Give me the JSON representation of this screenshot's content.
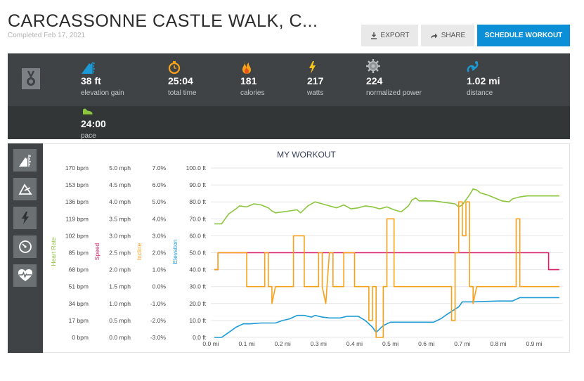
{
  "header": {
    "title": "CARCASSONNE CASTLE WALK, C...",
    "subtitle": "Completed Feb 17, 2021",
    "export_label": "EXPORT",
    "share_label": "SHARE",
    "schedule_label": "SCHEDULE WORKOUT"
  },
  "stats": [
    {
      "icon": "elevation-icon",
      "value": "38 ft",
      "label": "elevation gain"
    },
    {
      "icon": "stopwatch-icon",
      "value": "25:04",
      "label": "total time"
    },
    {
      "icon": "flame-icon",
      "value": "181",
      "label": "calories"
    },
    {
      "icon": "lightning-icon",
      "value": "217",
      "label": "watts"
    },
    {
      "icon": "gear-icon",
      "value": "224",
      "label": "normalized power"
    },
    {
      "icon": "distance-icon",
      "value": "1.02 mi",
      "label": "distance"
    },
    {
      "icon": "shoe-icon",
      "value": "24:00",
      "label": "pace"
    }
  ],
  "sidebar_icons": [
    "elevation-icon",
    "incline-icon",
    "power-icon",
    "speedometer-icon",
    "heart-rate-icon"
  ],
  "colors": {
    "heart_rate": "#8cc63f",
    "speed": "#d6216b",
    "incline": "#f7a11a",
    "elevation": "#1b9ad6",
    "accent": "#0b8fd6"
  },
  "chart_data": {
    "type": "line",
    "title": "MY WORKOUT",
    "x_ticks": [
      "0.0 mi",
      "0.1 mi",
      "0.2 mi",
      "0.3 mi",
      "0.4 mi",
      "0.5 mi",
      "0.6 mi",
      "0.7 mi",
      "0.8 mi",
      "0.9 mi"
    ],
    "xlim": [
      0,
      0.98
    ],
    "axes": [
      {
        "label": "Heart Rate",
        "ticks": [
          "170 bpm",
          "153 bpm",
          "136 bpm",
          "119 bpm",
          "102 bpm",
          "85 bpm",
          "68 bpm",
          "51 bpm",
          "34 bpm",
          "17 bpm",
          "0 bpm"
        ],
        "ylim": [
          0,
          170
        ]
      },
      {
        "label": "Speed",
        "ticks": [
          "5.0 mph",
          "4.5 mph",
          "4.0 mph",
          "3.5 mph",
          "3.0 mph",
          "2.5 mph",
          "2.0 mph",
          "1.5 mph",
          "1.0 mph",
          "0.5 mph",
          "0.0 mph"
        ],
        "ylim": [
          0,
          5
        ]
      },
      {
        "label": "Incline",
        "ticks": [
          "7.0%",
          "6.0%",
          "5.0%",
          "4.0%",
          "3.0%",
          "2.0%",
          "1.0%",
          "0.0%",
          "-1.0%",
          "-2.0%",
          "-3.0%"
        ],
        "ylim": [
          -3,
          7
        ]
      },
      {
        "label": "Elevation",
        "ticks": [
          "100.0 ft",
          "90.0 ft",
          "80.0 ft",
          "70.0 ft",
          "60.0 ft",
          "50.0 ft",
          "40.0 ft",
          "30.0 ft",
          "20.0 ft",
          "10.0 ft",
          "0.0 ft"
        ],
        "ylim": [
          0,
          100
        ]
      }
    ],
    "series": [
      {
        "name": "Heart Rate",
        "color": "#8cc63f",
        "points": [
          [
            0.01,
            114
          ],
          [
            0.03,
            114
          ],
          [
            0.04,
            119
          ],
          [
            0.05,
            124
          ],
          [
            0.07,
            129
          ],
          [
            0.08,
            132
          ],
          [
            0.1,
            131
          ],
          [
            0.12,
            134
          ],
          [
            0.14,
            133
          ],
          [
            0.16,
            130
          ],
          [
            0.17,
            127
          ],
          [
            0.18,
            125
          ],
          [
            0.2,
            126
          ],
          [
            0.22,
            127
          ],
          [
            0.24,
            128
          ],
          [
            0.25,
            125
          ],
          [
            0.27,
            132
          ],
          [
            0.29,
            136
          ],
          [
            0.31,
            134
          ],
          [
            0.33,
            132
          ],
          [
            0.35,
            130
          ],
          [
            0.37,
            133
          ],
          [
            0.39,
            129
          ],
          [
            0.41,
            130
          ],
          [
            0.43,
            132
          ],
          [
            0.45,
            131
          ],
          [
            0.47,
            129
          ],
          [
            0.49,
            131
          ],
          [
            0.51,
            128
          ],
          [
            0.53,
            126
          ],
          [
            0.55,
            132
          ],
          [
            0.56,
            138
          ],
          [
            0.57,
            140
          ],
          [
            0.58,
            137
          ],
          [
            0.6,
            137
          ],
          [
            0.62,
            137
          ],
          [
            0.64,
            136
          ],
          [
            0.66,
            135
          ],
          [
            0.68,
            134
          ],
          [
            0.69,
            131
          ],
          [
            0.7,
            133
          ],
          [
            0.71,
            138
          ],
          [
            0.72,
            143
          ],
          [
            0.73,
            149
          ],
          [
            0.74,
            148
          ],
          [
            0.75,
            145
          ],
          [
            0.77,
            143
          ],
          [
            0.79,
            140
          ],
          [
            0.81,
            137
          ],
          [
            0.83,
            136
          ],
          [
            0.84,
            139
          ],
          [
            0.86,
            141
          ],
          [
            0.88,
            142
          ],
          [
            0.9,
            142
          ],
          [
            0.97,
            142
          ]
        ]
      },
      {
        "name": "Speed",
        "color": "#d6216b",
        "points": [
          [
            0.01,
            2.0
          ],
          [
            0.02,
            2.0
          ],
          [
            0.02,
            2.5
          ],
          [
            0.94,
            2.5
          ],
          [
            0.94,
            2.0
          ],
          [
            0.97,
            2.0
          ]
        ]
      },
      {
        "name": "Incline",
        "color": "#f7a11a",
        "points": [
          [
            0.01,
            1.0
          ],
          [
            0.02,
            1.0
          ],
          [
            0.02,
            2.0
          ],
          [
            0.1,
            2.0
          ],
          [
            0.1,
            0.0
          ],
          [
            0.15,
            0.0
          ],
          [
            0.15,
            2.0
          ],
          [
            0.16,
            2.0
          ],
          [
            0.16,
            0.0
          ],
          [
            0.17,
            0.0
          ],
          [
            0.17,
            -1.0
          ],
          [
            0.18,
            0.0
          ],
          [
            0.23,
            0.0
          ],
          [
            0.23,
            3.0
          ],
          [
            0.26,
            3.0
          ],
          [
            0.26,
            0.0
          ],
          [
            0.3,
            0.0
          ],
          [
            0.3,
            2.0
          ],
          [
            0.31,
            2.0
          ],
          [
            0.31,
            0.0
          ],
          [
            0.32,
            -1.0
          ],
          [
            0.33,
            2.0
          ],
          [
            0.34,
            2.0
          ],
          [
            0.34,
            0.0
          ],
          [
            0.37,
            0.0
          ],
          [
            0.37,
            2.0
          ],
          [
            0.4,
            2.0
          ],
          [
            0.4,
            0.0
          ],
          [
            0.44,
            0.0
          ],
          [
            0.44,
            -2.0
          ],
          [
            0.45,
            -2.0
          ],
          [
            0.45,
            0.0
          ],
          [
            0.46,
            0.0
          ],
          [
            0.46,
            -3.0
          ],
          [
            0.48,
            -3.0
          ],
          [
            0.48,
            0.0
          ],
          [
            0.49,
            0.0
          ],
          [
            0.49,
            4.0
          ],
          [
            0.51,
            4.0
          ],
          [
            0.51,
            0.0
          ],
          [
            0.67,
            0.0
          ],
          [
            0.67,
            -2.0
          ],
          [
            0.68,
            -2.0
          ],
          [
            0.68,
            2.0
          ],
          [
            0.69,
            2.0
          ],
          [
            0.69,
            5.0
          ],
          [
            0.7,
            5.0
          ],
          [
            0.7,
            3.0
          ],
          [
            0.71,
            3.0
          ],
          [
            0.71,
            5.0
          ],
          [
            0.72,
            5.0
          ],
          [
            0.72,
            0.0
          ],
          [
            0.73,
            0.0
          ],
          [
            0.73,
            -1.0
          ],
          [
            0.74,
            0.0
          ],
          [
            0.85,
            0.0
          ],
          [
            0.85,
            4.0
          ],
          [
            0.86,
            4.0
          ],
          [
            0.86,
            0.0
          ],
          [
            0.97,
            0.0
          ]
        ]
      },
      {
        "name": "Elevation",
        "color": "#1b9ad6",
        "points": [
          [
            0.01,
            0
          ],
          [
            0.03,
            0
          ],
          [
            0.05,
            3
          ],
          [
            0.07,
            6
          ],
          [
            0.09,
            8
          ],
          [
            0.11,
            8
          ],
          [
            0.14,
            8.5
          ],
          [
            0.18,
            8.5
          ],
          [
            0.2,
            10
          ],
          [
            0.22,
            11
          ],
          [
            0.24,
            13
          ],
          [
            0.26,
            13
          ],
          [
            0.28,
            12
          ],
          [
            0.29,
            13
          ],
          [
            0.31,
            12
          ],
          [
            0.33,
            11.5
          ],
          [
            0.36,
            11.5
          ],
          [
            0.38,
            12.5
          ],
          [
            0.41,
            12.5
          ],
          [
            0.43,
            10
          ],
          [
            0.45,
            6
          ],
          [
            0.46,
            3
          ],
          [
            0.48,
            7
          ],
          [
            0.5,
            9
          ],
          [
            0.55,
            9
          ],
          [
            0.59,
            9
          ],
          [
            0.6,
            9
          ],
          [
            0.62,
            9
          ],
          [
            0.64,
            11
          ],
          [
            0.66,
            14
          ],
          [
            0.69,
            18
          ],
          [
            0.7,
            21
          ],
          [
            0.73,
            21
          ],
          [
            0.8,
            21.5
          ],
          [
            0.84,
            21.5
          ],
          [
            0.86,
            23.5
          ],
          [
            0.97,
            23.5
          ]
        ]
      }
    ]
  }
}
